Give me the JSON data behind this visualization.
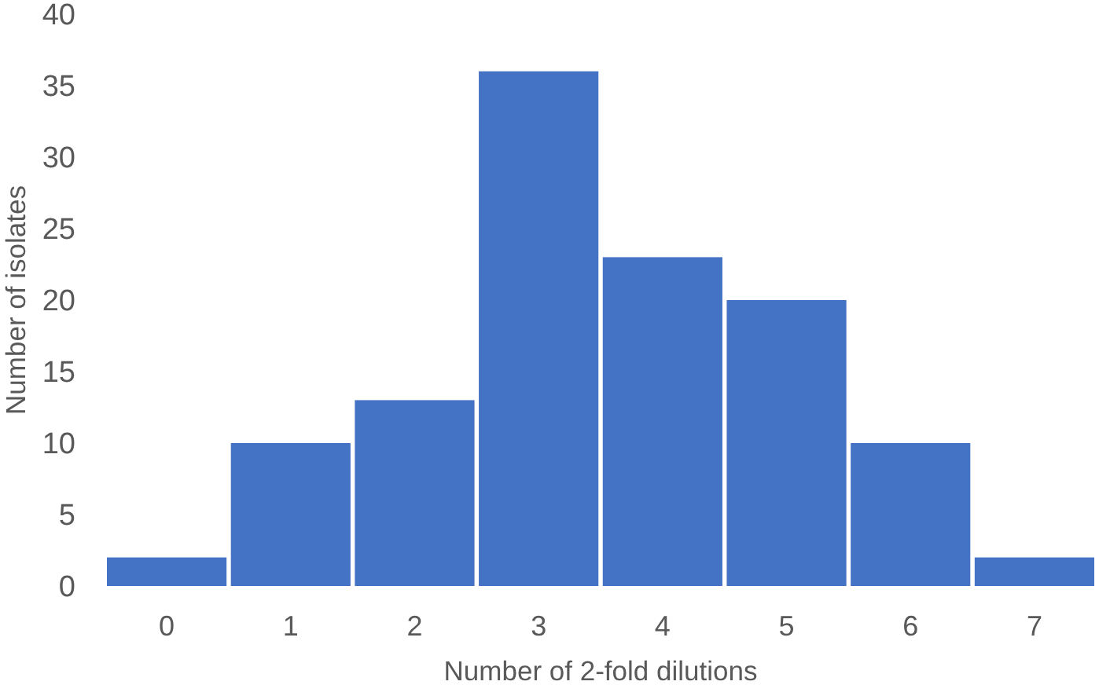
{
  "chart_data": {
    "type": "bar",
    "xlabel": "Number of 2-fold dilutions",
    "ylabel": "Number of isolates",
    "categories": [
      "0",
      "1",
      "2",
      "3",
      "4",
      "5",
      "6",
      "7"
    ],
    "values": [
      2,
      10,
      13,
      36,
      23,
      20,
      10,
      2
    ],
    "color": "#4472c4",
    "ylim": [
      0,
      40
    ],
    "yticks": [
      0,
      5,
      10,
      15,
      20,
      25,
      30,
      35,
      40
    ],
    "grid": false
  }
}
